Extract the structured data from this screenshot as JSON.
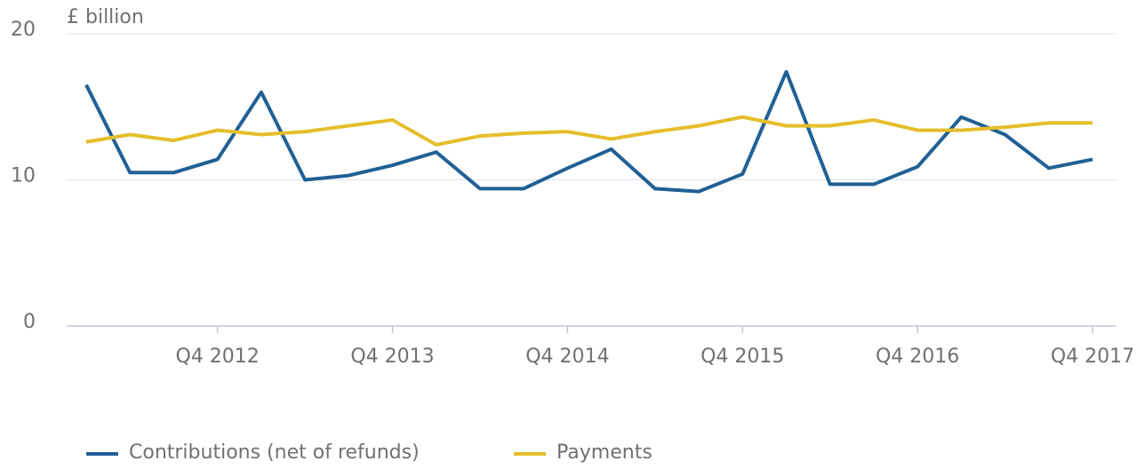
{
  "chart_data": {
    "type": "line",
    "y_axis_label": "£ billion",
    "categories": [
      null,
      null,
      null,
      "Q4 2012",
      null,
      null,
      null,
      "Q4 2013",
      null,
      null,
      null,
      "Q4 2014",
      null,
      null,
      null,
      "Q4 2015",
      null,
      null,
      null,
      "Q4 2016",
      null,
      null,
      null,
      "Q4 2017"
    ],
    "series": [
      {
        "name": "Contributions (net of refunds)",
        "color": "#206095",
        "values": [
          16.5,
          10.5,
          10.5,
          11.4,
          16.0,
          10.0,
          10.3,
          11.0,
          11.9,
          9.4,
          9.4,
          10.8,
          12.1,
          9.4,
          9.2,
          10.4,
          17.4,
          9.7,
          9.7,
          10.9,
          14.3,
          13.1,
          10.8,
          11.4
        ]
      },
      {
        "name": "Payments",
        "color": "#e5be2a",
        "values": [
          12.6,
          13.1,
          12.7,
          13.4,
          13.1,
          13.3,
          13.7,
          14.1,
          12.4,
          13.0,
          13.2,
          13.3,
          12.8,
          13.3,
          13.7,
          14.3,
          13.7,
          13.7,
          14.1,
          13.4,
          13.4,
          13.6,
          13.9,
          13.9
        ]
      }
    ],
    "ylim": [
      0,
      20
    ],
    "yticks": [
      0,
      10,
      20
    ],
    "grid": true
  }
}
